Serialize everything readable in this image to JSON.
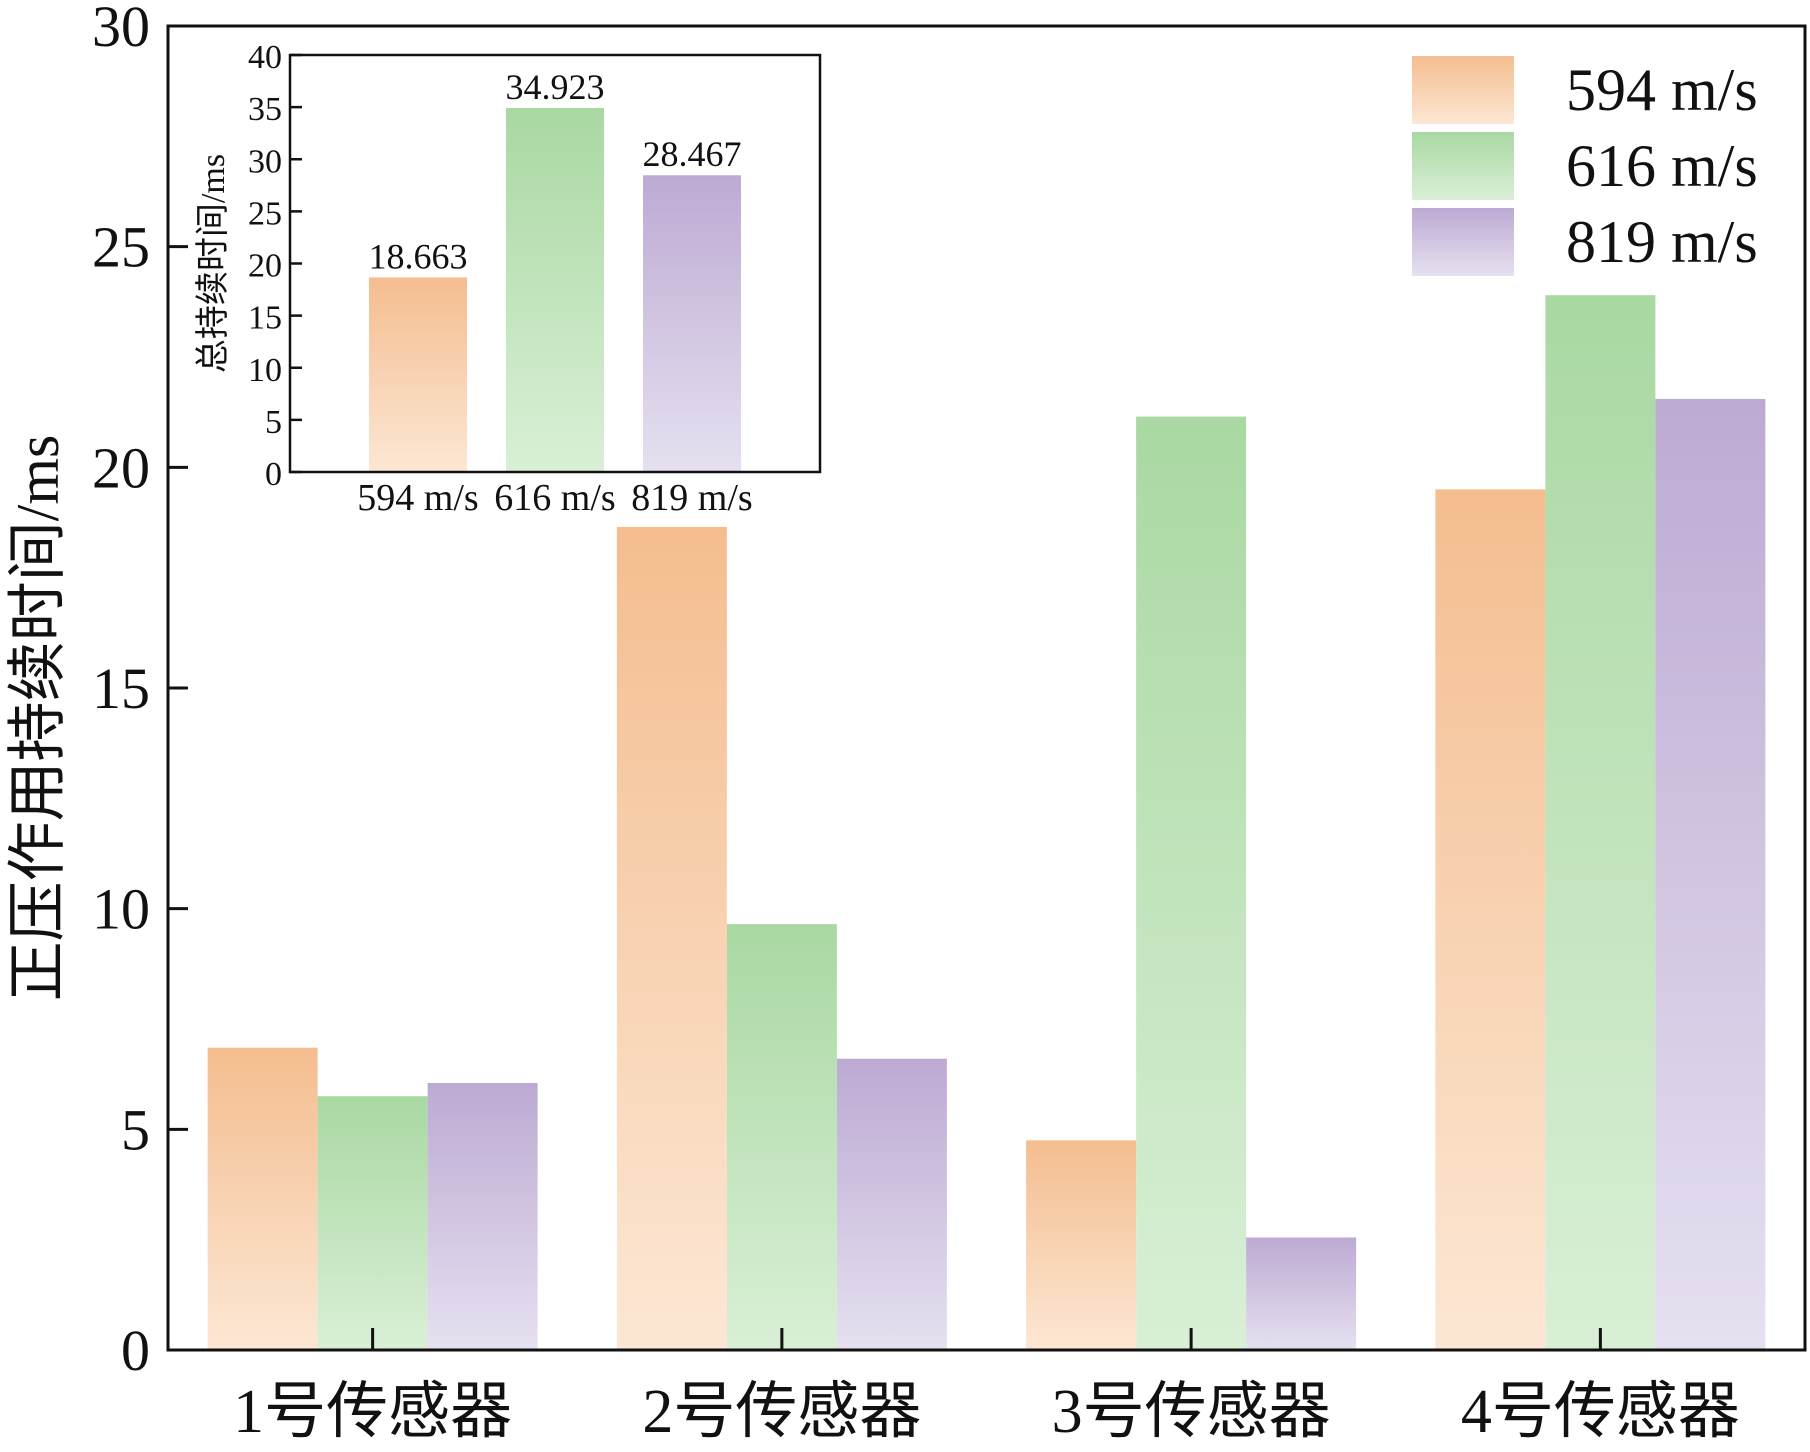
{
  "chart_data": [
    {
      "id": "main",
      "type": "bar",
      "title": "",
      "xlabel": "",
      "ylabel": "正压作用持续时间/ms",
      "categories": [
        "1号传感器",
        "2号传感器",
        "3号传感器",
        "4号传感器"
      ],
      "series": [
        {
          "name": "594 m/s",
          "values": [
            6.85,
            18.65,
            4.75,
            19.5
          ]
        },
        {
          "name": "616 m/s",
          "values": [
            5.75,
            9.65,
            21.15,
            23.9
          ]
        },
        {
          "name": "819 m/s",
          "values": [
            6.05,
            6.6,
            2.55,
            21.55
          ]
        }
      ],
      "ylim": [
        0,
        30
      ],
      "yticks": [
        "0",
        "5",
        "10",
        "15",
        "20",
        "25",
        "30"
      ],
      "grid": false,
      "legend_position": "top-right"
    },
    {
      "id": "inset",
      "type": "bar",
      "title": "",
      "xlabel": "",
      "ylabel": "总持续时间/ms",
      "categories": [
        "594 m/s",
        "616 m/s",
        "819 m/s"
      ],
      "values": [
        18.663,
        34.923,
        28.467
      ],
      "data_labels": [
        "18.663",
        "34.923",
        "28.467"
      ],
      "ylim": [
        0,
        40
      ],
      "yticks": [
        "0",
        "5",
        "10",
        "15",
        "20",
        "25",
        "30",
        "35",
        "40"
      ],
      "grid": false
    }
  ],
  "colors": {
    "594 m/s": {
      "top": "#f4bd8f",
      "bottom": "#fce7d4"
    },
    "616 m/s": {
      "top": "#a9d8a2",
      "bottom": "#d9efd6"
    },
    "819 m/s": {
      "top": "#bcaad3",
      "bottom": "#e6e0f0"
    }
  }
}
